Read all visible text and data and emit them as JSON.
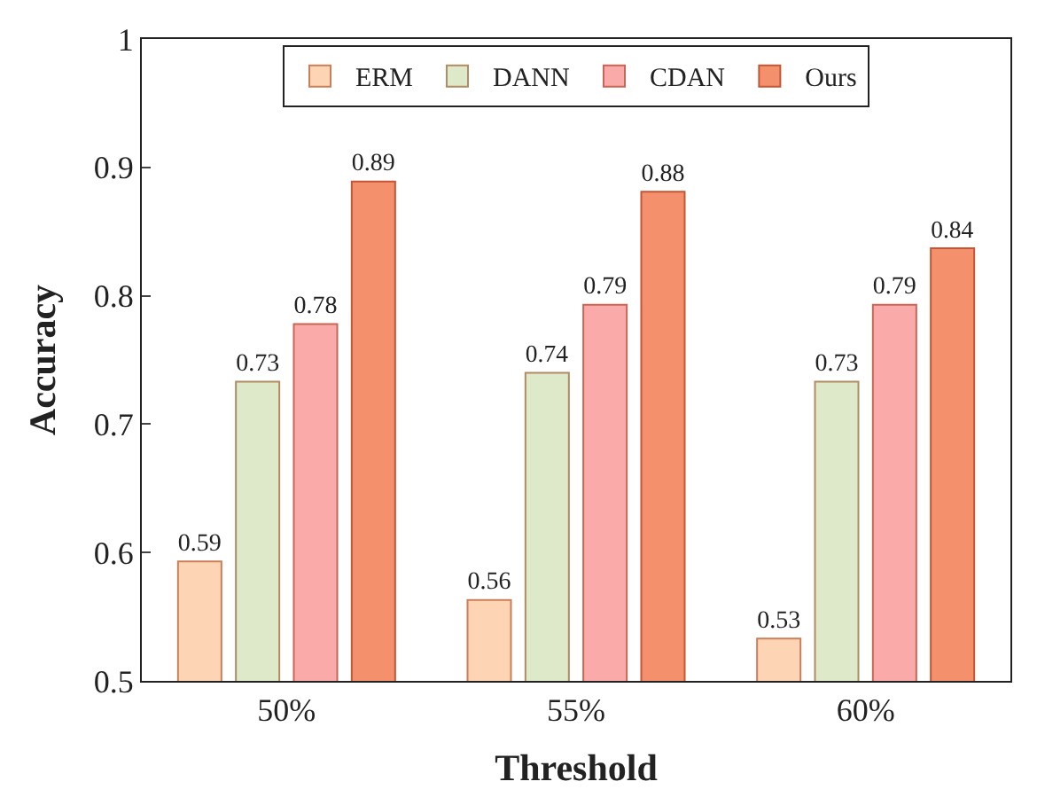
{
  "chart_data": {
    "type": "bar",
    "xlabel": "Threshold",
    "ylabel": "Accuracy",
    "categories": [
      "50%",
      "55%",
      "60%"
    ],
    "series": [
      {
        "name": "ERM",
        "color": "#fdd5b4",
        "values": [
          0.593,
          0.563,
          0.533
        ],
        "value_labels": [
          "0.59",
          "0.56",
          "0.53"
        ]
      },
      {
        "name": "DANN",
        "color": "#dde9c8",
        "values": [
          0.733,
          0.74,
          0.733
        ],
        "value_labels": [
          "0.73",
          "0.74",
          "0.73"
        ]
      },
      {
        "name": "CDAN",
        "color": "#fbaaaa",
        "values": [
          0.778,
          0.793,
          0.793
        ],
        "value_labels": [
          "0.78",
          "0.79",
          "0.79"
        ]
      },
      {
        "name": "Ours",
        "color": "#f4906c",
        "values": [
          0.889,
          0.881,
          0.837
        ],
        "value_labels": [
          "0.89",
          "0.88",
          "0.84"
        ]
      }
    ],
    "ylim": [
      0.5,
      1
    ],
    "yticks": [
      0.5,
      0.6,
      0.7,
      0.8,
      0.9,
      1
    ],
    "legend": "top"
  }
}
